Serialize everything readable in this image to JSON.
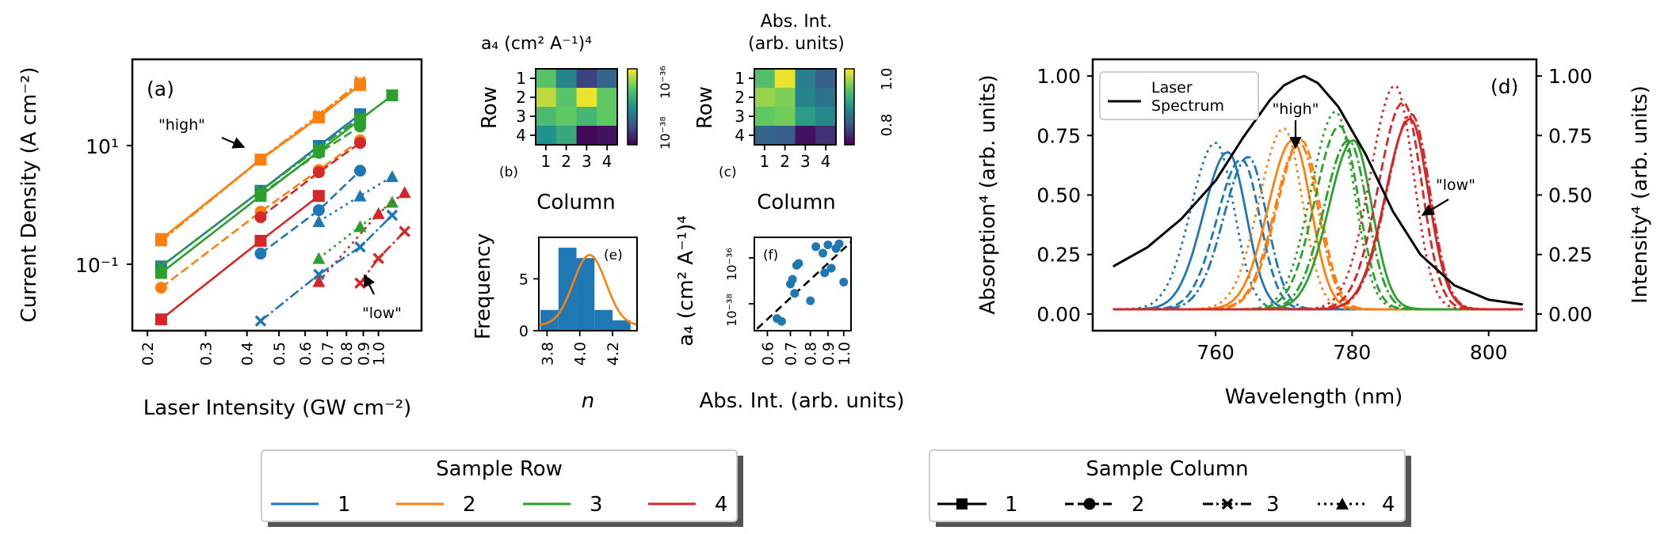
{
  "colors": {
    "row1": "#1f77b4",
    "row2": "#ff7f0e",
    "row3": "#2ca02c",
    "row4": "#d62728",
    "laser": "#000000"
  },
  "panel_a": {
    "label": "(a)",
    "xlabel": "Laser Intensity (GW cm⁻²)",
    "ylabel": "Current Density (A cm⁻²)",
    "xticks": [
      "0.2",
      "0.3",
      "0.4",
      "0.5",
      "0.6",
      "0.7",
      "0.8",
      "0.9",
      "1.0"
    ],
    "yticks": [
      "10¹",
      "10⁻¹"
    ],
    "ann_high": "\"high\"",
    "ann_low": "\"low\""
  },
  "panel_b": {
    "label": "(b)",
    "title": "a₄ (cm² A⁻¹)⁴",
    "xlabel": "Column",
    "ylabel": "Row",
    "xticks": [
      "1",
      "2",
      "3",
      "4"
    ],
    "yticks": [
      "1",
      "2",
      "3",
      "4"
    ],
    "cbar_ticks": [
      "10⁻³⁶",
      "10⁻³⁸"
    ]
  },
  "panel_c": {
    "label": "(c)",
    "title_line1": "Abs. Int.",
    "title_line2": "(arb. units)",
    "xlabel": "Column",
    "ylabel": "Row",
    "xticks": [
      "1",
      "2",
      "3",
      "4"
    ],
    "yticks": [
      "1",
      "2",
      "3",
      "4"
    ],
    "cbar_ticks": [
      "1.0",
      "0.8"
    ]
  },
  "panel_e": {
    "label": "(e)",
    "xlabel": "n",
    "ylabel": "Frequency",
    "xticks": [
      "3.8",
      "4.0",
      "4.2"
    ],
    "yticks": [
      "0",
      "5"
    ]
  },
  "panel_f": {
    "label": "(f)",
    "xlabel": "Abs. Int. (arb. units)",
    "ylabel": "a₄ (cm² A⁻¹)⁴",
    "xticks": [
      "0.6",
      "0.7",
      "0.8",
      "0.9",
      "1.0"
    ],
    "yticks": [
      "10⁻³⁶",
      "10⁻³⁸"
    ]
  },
  "panel_d": {
    "label": "(d)",
    "xlabel": "Wavelength (nm)",
    "ylabel_left": "Absorption⁴ (arb. units)",
    "ylabel_right": "Intensity⁴ (arb. units)",
    "xticks": [
      "760",
      "780",
      "800"
    ],
    "yticks": [
      "0.00",
      "0.25",
      "0.50",
      "0.75",
      "1.00"
    ],
    "legend_line1": "Laser",
    "legend_line2": "Spectrum",
    "ann_high": "\"high\"",
    "ann_low": "\"low\""
  },
  "legend_row": {
    "title": "Sample Row",
    "labels": [
      "1",
      "2",
      "3",
      "4"
    ]
  },
  "legend_col": {
    "title": "Sample Column",
    "labels": [
      "1",
      "2",
      "3",
      "4"
    ]
  },
  "chart_data": [
    {
      "id": "a",
      "type": "scatter",
      "title": "",
      "xlabel": "Laser Intensity (GW cm⁻²)",
      "ylabel": "Current Density (A cm⁻²)",
      "xscale": "log",
      "yscale": "log",
      "xlim": [
        0.18,
        1.35
      ],
      "ylim": [
        0.012,
        200
      ],
      "series": [
        {
          "row": 1,
          "col": 1,
          "x": [
            0.22,
            0.44,
            0.66,
            0.88
          ],
          "y": [
            0.12,
            1.8,
            9,
            28
          ]
        },
        {
          "row": 1,
          "col": 2,
          "x": [
            0.44,
            0.66,
            0.88
          ],
          "y": [
            0.19,
            0.9,
            3.7
          ]
        },
        {
          "row": 1,
          "col": 3,
          "x": [
            0.44,
            0.66,
            0.88,
            1.1
          ],
          "y": [
            0.017,
            0.09,
            0.24,
            0.75
          ]
        },
        {
          "row": 1,
          "col": 4,
          "x": [
            0.66,
            0.88,
            1.1
          ],
          "y": [
            0.6,
            1.5,
            3
          ]
        },
        {
          "row": 2,
          "col": 1,
          "x": [
            0.22,
            0.44,
            0.66,
            0.88
          ],
          "y": [
            0.32,
            5.5,
            25,
            80
          ]
        },
        {
          "row": 2,
          "col": 2,
          "x": [
            0.22,
            0.44,
            0.66,
            0.88
          ],
          "y": [
            0.056,
            0.85,
            3.8,
            11
          ]
        },
        {
          "row": 2,
          "col": 3,
          "x": [
            0.22,
            0.44,
            0.66,
            0.88
          ],
          "y": [
            0.3,
            5.6,
            27,
            90
          ]
        },
        {
          "row": 2,
          "col": 4,
          "x": [
            0.22,
            0.44,
            0.66,
            0.88
          ],
          "y": [
            0.3,
            5.5,
            26,
            85
          ]
        },
        {
          "row": 3,
          "col": 1,
          "x": [
            0.22,
            0.44,
            0.66,
            0.88,
            1.1
          ],
          "y": [
            0.095,
            1.5,
            7.4,
            23,
            55
          ]
        },
        {
          "row": 3,
          "col": 2,
          "x": [
            0.44,
            0.66,
            0.88
          ],
          "y": [
            1.6,
            7,
            18
          ]
        },
        {
          "row": 3,
          "col": 3,
          "x": [
            0.22,
            0.44,
            0.66,
            0.88
          ],
          "y": [
            0.12,
            1.8,
            8.4,
            25
          ]
        },
        {
          "row": 3,
          "col": 4,
          "x": [
            0.66,
            0.88,
            1.1
          ],
          "y": [
            0.16,
            0.5,
            1.2
          ]
        },
        {
          "row": 4,
          "col": 1,
          "x": [
            0.22,
            0.44,
            0.66
          ],
          "y": [
            0.018,
            0.3,
            1.5
          ]
        },
        {
          "row": 4,
          "col": 2,
          "x": [
            0.44,
            0.66,
            0.88
          ],
          "y": [
            0.7,
            3.5,
            10
          ]
        },
        {
          "row": 4,
          "col": 3,
          "x": [
            0.88,
            1.0,
            1.2
          ],
          "y": [
            0.066,
            0.16,
            0.42
          ]
        },
        {
          "row": 4,
          "col": 4,
          "x": [
            0.66,
            1.0,
            1.2
          ],
          "y": [
            0.07,
            0.8,
            1.7
          ]
        }
      ]
    },
    {
      "id": "b",
      "type": "heatmap",
      "title": "a₄ (cm² A⁻¹)⁴",
      "xlabel": "Column",
      "ylabel": "Row",
      "colorscale": "log",
      "range": [
        "1e-39",
        "1e-35"
      ],
      "rows": [
        "1",
        "2",
        "3",
        "4"
      ],
      "columns": [
        "1",
        "2",
        "3",
        "4"
      ],
      "values": [
        [
          0.72,
          0.45,
          0.2,
          0.33
        ],
        [
          0.9,
          0.72,
          0.97,
          0.75
        ],
        [
          0.68,
          0.75,
          0.66,
          0.75
        ],
        [
          0.5,
          0.6,
          0.02,
          0.05
        ]
      ]
    },
    {
      "id": "c",
      "type": "heatmap",
      "title": "Abs. Int. (arb. units)",
      "xlabel": "Column",
      "ylabel": "Row",
      "range": [
        0.65,
        1.05
      ],
      "rows": [
        "1",
        "2",
        "3",
        "4"
      ],
      "columns": [
        "1",
        "2",
        "3",
        "4"
      ],
      "values": [
        [
          0.7,
          0.97,
          0.42,
          0.3
        ],
        [
          0.84,
          0.8,
          0.45,
          0.38
        ],
        [
          0.75,
          0.78,
          0.55,
          0.46
        ],
        [
          0.32,
          0.3,
          0.05,
          0.15
        ]
      ]
    },
    {
      "id": "e",
      "type": "bar",
      "title": "",
      "xlabel": "n",
      "ylabel": "Frequency",
      "xlim": [
        3.75,
        4.35
      ],
      "ylim": [
        0,
        9
      ],
      "bins": [
        3.76,
        3.87,
        3.98,
        4.09,
        4.2,
        4.31
      ],
      "counts": [
        2,
        8,
        7,
        2,
        1
      ],
      "fit_curve": {
        "type": "gaussian",
        "mean": 4.06,
        "sd": 0.1,
        "peak": 7.3,
        "offset": 0.5
      }
    },
    {
      "id": "f",
      "type": "scatter",
      "title": "",
      "xlabel": "Abs. Int. (arb. units)",
      "ylabel": "a₄ (cm² A⁻¹)⁴",
      "xscale": "log",
      "yscale": "log",
      "xlim": [
        0.55,
        1.05
      ],
      "x": [
        0.64,
        0.66,
        0.7,
        0.71,
        0.72,
        0.73,
        0.74,
        0.8,
        0.83,
        0.87,
        0.88,
        0.9,
        0.92,
        0.95,
        0.97,
        1.0
      ],
      "y_relative": [
        0.13,
        0.1,
        0.5,
        0.55,
        0.4,
        0.7,
        0.72,
        0.32,
        0.9,
        0.83,
        0.62,
        0.92,
        0.67,
        0.88,
        0.93,
        0.52
      ],
      "trend_line": {
        "x": [
          0.56,
          1.05
        ],
        "y_relative": [
          0.02,
          0.95
        ],
        "style": "dashed"
      }
    },
    {
      "id": "d",
      "type": "line",
      "title": "",
      "xlabel": "Wavelength (nm)",
      "ylabel": "Absorption⁴ (arb. units)",
      "y2label": "Intensity⁴ (arb. units)",
      "xlim": [
        742,
        807
      ],
      "ylim": [
        -0.07,
        1.07
      ],
      "laser_spectrum": {
        "x": [
          745,
          750,
          755,
          760,
          764,
          768,
          770,
          772,
          773,
          775,
          778,
          782,
          786,
          790,
          795,
          800,
          805
        ],
        "y": [
          0.2,
          0.28,
          0.4,
          0.56,
          0.74,
          0.9,
          0.96,
          0.99,
          1.0,
          0.97,
          0.87,
          0.67,
          0.43,
          0.25,
          0.12,
          0.06,
          0.04
        ]
      },
      "absorption_peaks": [
        {
          "row": 1,
          "col": 1,
          "center": 761.8,
          "height": 0.66
        },
        {
          "row": 1,
          "col": 2,
          "center": 763.8,
          "height": 0.63
        },
        {
          "row": 1,
          "col": 3,
          "center": 764.8,
          "height": 0.64
        },
        {
          "row": 1,
          "col": 4,
          "center": 760.0,
          "height": 0.7
        },
        {
          "row": 2,
          "col": 1,
          "center": 771.3,
          "height": 0.71
        },
        {
          "row": 2,
          "col": 2,
          "center": 772.6,
          "height": 0.71
        },
        {
          "row": 2,
          "col": 3,
          "center": 772.3,
          "height": 0.7
        },
        {
          "row": 2,
          "col": 4,
          "center": 770.0,
          "height": 0.76
        },
        {
          "row": 3,
          "col": 1,
          "center": 780.2,
          "height": 0.71
        },
        {
          "row": 3,
          "col": 2,
          "center": 778.2,
          "height": 0.77
        },
        {
          "row": 3,
          "col": 3,
          "center": 779.5,
          "height": 0.71
        },
        {
          "row": 3,
          "col": 4,
          "center": 777.6,
          "height": 0.83
        },
        {
          "row": 4,
          "col": 1,
          "center": 788.5,
          "height": 0.8
        },
        {
          "row": 4,
          "col": 2,
          "center": 787.5,
          "height": 0.87
        },
        {
          "row": 4,
          "col": 3,
          "center": 788.7,
          "height": 0.82
        },
        {
          "row": 4,
          "col": 4,
          "center": 786.3,
          "height": 0.94
        }
      ]
    }
  ]
}
